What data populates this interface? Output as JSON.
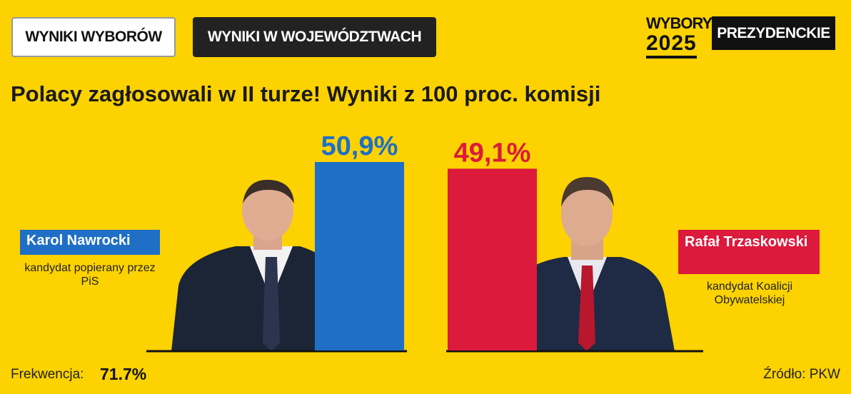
{
  "header": {
    "tabs": [
      "WYNIKI WYBORÓW",
      "WYNIKI W WOJEWÓDZTWACH"
    ],
    "logo": {
      "line1": "WYBORY",
      "line2": "2025",
      "badge": "PREZYDENCKIE"
    }
  },
  "chart_data": {
    "type": "bar",
    "title": "Polacy zagłosowali w II turze! Wyniki z 100 proc. komisji",
    "categories": [
      "Karol Nawrocki",
      "Rafał Trzaskowski"
    ],
    "descriptions": [
      "kandydat popierany przez PiS",
      "kandydat Koalicji Obywatelskiej"
    ],
    "values": [
      50.9,
      49.1
    ],
    "value_labels": [
      "50,9%",
      "49,1%"
    ],
    "colors": [
      "#1f6fc6",
      "#dc1a3c"
    ]
  },
  "footer": {
    "turnout_label": "Frekwencja:",
    "turnout": "71.7%",
    "source": "Źródło: PKW"
  }
}
